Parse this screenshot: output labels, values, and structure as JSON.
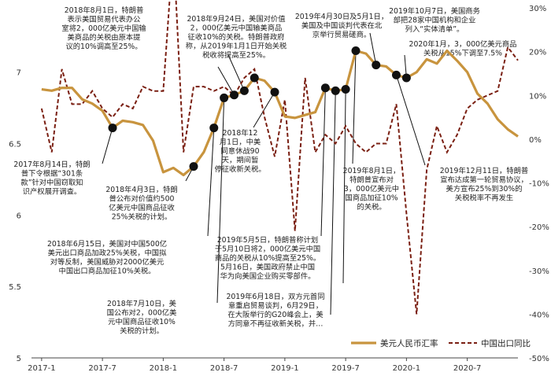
{
  "chart_data": {
    "type": "line",
    "x_ticks": [
      "2017-1",
      "2017-7",
      "2018-1",
      "2018-7",
      "2019-1",
      "2019-7",
      "2020-1",
      "2020-7"
    ],
    "y_left_ticks": [
      "5",
      "5.5",
      "6",
      "6.5",
      "7"
    ],
    "y_right_ticks": [
      "30%",
      "20%",
      "10%",
      "0%",
      "-10%",
      "-20%",
      "-30%",
      "-40%",
      "-50%"
    ],
    "ylim_left": [
      5,
      7.45
    ],
    "ylim_right": [
      -50,
      30
    ],
    "series": [
      {
        "name": "美元人民币汇率",
        "axis": "left",
        "color": "#C8943E",
        "x": [
          "2017-01",
          "2017-02",
          "2017-03",
          "2017-04",
          "2017-05",
          "2017-06",
          "2017-07",
          "2017-08",
          "2017-09",
          "2017-10",
          "2017-11",
          "2017-12",
          "2018-01",
          "2018-02",
          "2018-03",
          "2018-04",
          "2018-05",
          "2018-06",
          "2018-07",
          "2018-08",
          "2018-09",
          "2018-10",
          "2018-11",
          "2018-12",
          "2019-01",
          "2019-02",
          "2019-03",
          "2019-04",
          "2019-05",
          "2019-06",
          "2019-07",
          "2019-08",
          "2019-09",
          "2019-10",
          "2019-11",
          "2019-12",
          "2020-01",
          "2020-02",
          "2020-03",
          "2020-04",
          "2020-05",
          "2020-06",
          "2020-07",
          "2020-08",
          "2020-09",
          "2020-10",
          "2020-11",
          "2020-12"
        ],
        "values": [
          6.88,
          6.87,
          6.89,
          6.89,
          6.81,
          6.78,
          6.73,
          6.61,
          6.66,
          6.65,
          6.63,
          6.52,
          6.3,
          6.33,
          6.28,
          6.34,
          6.44,
          6.61,
          6.82,
          6.84,
          6.87,
          6.96,
          6.94,
          6.86,
          6.69,
          6.68,
          6.7,
          6.72,
          6.89,
          6.87,
          6.88,
          7.15,
          7.13,
          7.05,
          7.04,
          6.98,
          6.96,
          7.0,
          7.09,
          7.06,
          7.15,
          7.08,
          7.0,
          6.85,
          6.78,
          6.67,
          6.6,
          6.55
        ]
      },
      {
        "name": "中国出口同比",
        "axis": "right",
        "color": "#7A1F12",
        "x": [
          "2017-01",
          "2017-02",
          "2017-03",
          "2017-04",
          "2017-05",
          "2017-06",
          "2017-07",
          "2017-08",
          "2017-09",
          "2017-10",
          "2017-11",
          "2017-12",
          "2018-01",
          "2018-02",
          "2018-03",
          "2018-04",
          "2018-05",
          "2018-06",
          "2018-07",
          "2018-08",
          "2018-09",
          "2018-10",
          "2018-11",
          "2018-12",
          "2019-01",
          "2019-02",
          "2019-03",
          "2019-04",
          "2019-05",
          "2019-06",
          "2019-07",
          "2019-08",
          "2019-09",
          "2019-10",
          "2019-11",
          "2019-12",
          "2020-01",
          "2020-02",
          "2020-03",
          "2020-04",
          "2020-05",
          "2020-06",
          "2020-07",
          "2020-08",
          "2020-09",
          "2020-10",
          "2020-11",
          "2020-12"
        ],
        "values": [
          7,
          -3,
          16,
          8,
          8,
          11,
          7,
          5,
          8,
          7,
          12,
          11,
          11,
          44,
          -3,
          12,
          12,
          11,
          12,
          10,
          14,
          16,
          5,
          -4,
          9,
          -21,
          14,
          -3,
          1,
          -1,
          3,
          -1,
          -3,
          -1,
          -1,
          8,
          -17,
          -40,
          -7,
          3,
          -3,
          1,
          7,
          9,
          10,
          11,
          21,
          18
        ]
      }
    ],
    "annotations": [
      "2017年8月14日，特朗普下令根据“301条款”针对中国窃取知识产权展开调查。",
      "2018年4月3日，特朗普公布对价值约500亿美元中国商品征收25%关税的计划。",
      "2018年6月15日，美国对中国500亿美元出口商品加政25%关税，中国拟对等反制，美国威胁对2000亿美元中国出口商品加征10%关税。",
      "2018年7月10日，美国公布对2，000亿美元中国商品征收10%关税的计划。",
      "2018年8月1日，特朗普表示美国贸易代表办公室将2，000亿美元中国输美商品的关税由原本提议的10%调高至25%。",
      "2018年9月24日，美国对价值2，000亿美元中国输美商品征收10%的关税。特朗普政府称，从2019年1月1日开始关税税收将提高至25%。",
      "2018年12月1日，中美同意休战90天，期间暂停征收新关税。",
      "2019年5月5日，特朗普称计划于5月10日将2，000亿美元中国商品的关税从10%提高至25%。5月16日，美国政府禁止中国华为向美国企业购买零部件。",
      "2019年6月18日，双方元首同意重启贸易谈判，6月29日，在大阪举行的G20峰会上，美方同意不再征收新关税，并…",
      "2019年4月30日及5月1日，美国及中国谈判代表在北京举行贸易磋商。",
      "2019年8月1日，特朗普宣布对3，000亿美元中国商品加征10%的关税。",
      "2019年10月7日，美国商务部把28家中国机构和企业列入“实体清单”。",
      "2020年1月，3，000亿美元商品关税从15%下调至7.5%",
      "2019年12月11日，特朗普宣布达成第一轮贸易协议，美方宣布25%到30%的关税税率不再发生"
    ]
  }
}
